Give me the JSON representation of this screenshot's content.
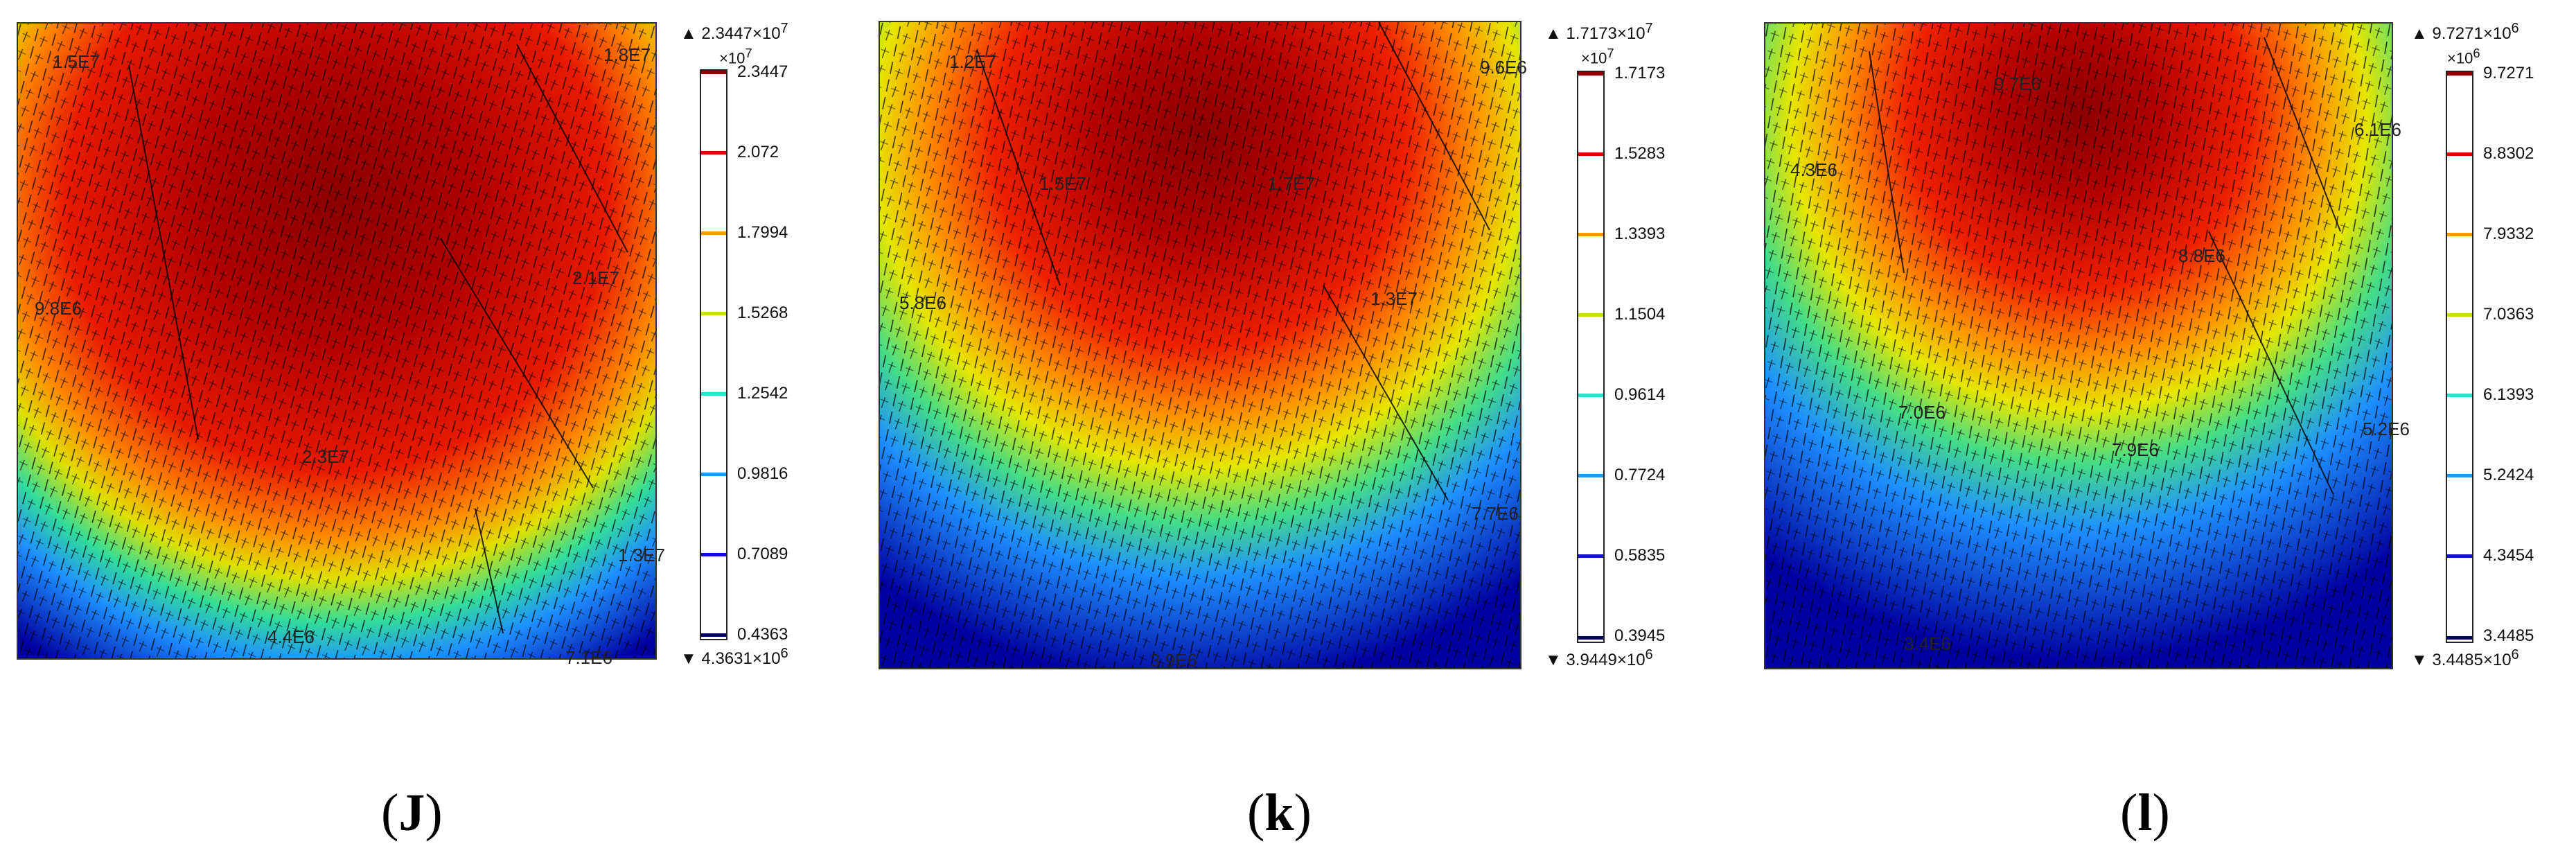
{
  "panels": [
    {
      "caption_open": "(",
      "caption_letter": "J",
      "caption_close": ")",
      "colorbar": {
        "max_label": "▲ 2.3447×10",
        "max_exp": "7",
        "multiplier": "×10",
        "multiplier_exp": "7",
        "ticks": [
          "2.3447",
          "2.072",
          "1.7994",
          "1.5268",
          "1.2542",
          "0.9816",
          "0.7089",
          "0.4363"
        ],
        "tick_colors": [
          "#8b0000",
          "#e00000",
          "#ff9900",
          "#c8e000",
          "#33ddcc",
          "#2299ee",
          "#1010cc",
          "#000066"
        ],
        "min_label": "▼ 4.3631×10",
        "min_exp": "6"
      },
      "field_labels": [
        "1.5E7",
        "1.8E7",
        "9.8E6",
        "2.1E7",
        "2.3E7",
        "1.3E7",
        "4.4E6",
        "7.1E6"
      ]
    },
    {
      "caption_open": "(",
      "caption_letter": "k",
      "caption_close": ")",
      "colorbar": {
        "max_label": "▲ 1.7173×10",
        "max_exp": "7",
        "multiplier": "×10",
        "multiplier_exp": "7",
        "ticks": [
          "1.7173",
          "1.5283",
          "1.3393",
          "1.1504",
          "0.9614",
          "0.7724",
          "0.5835",
          "0.3945"
        ],
        "tick_colors": [
          "#8b0000",
          "#e00000",
          "#ff9900",
          "#c8e000",
          "#33ddcc",
          "#2299ee",
          "#1010cc",
          "#000066"
        ],
        "min_label": "▼ 3.9449×10",
        "min_exp": "6"
      },
      "field_labels": [
        "1.2E7",
        "9.6E6",
        "1.5E7",
        "1.7E7",
        "5.8E6",
        "1.3E7",
        "7.7E6",
        "3.9E6"
      ]
    },
    {
      "caption_open": "(",
      "caption_letter": "l",
      "caption_close": ")",
      "colorbar": {
        "max_label": "▲ 9.7271×10",
        "max_exp": "6",
        "multiplier": "×10",
        "multiplier_exp": "6",
        "ticks": [
          "9.7271",
          "8.8302",
          "7.9332",
          "7.0363",
          "6.1393",
          "5.2424",
          "4.3454",
          "3.4485"
        ],
        "tick_colors": [
          "#8b0000",
          "#e00000",
          "#ff9900",
          "#c8e000",
          "#33ddcc",
          "#2299ee",
          "#1010cc",
          "#000066"
        ],
        "min_label": "▼ 3.4485×10",
        "min_exp": "6"
      },
      "field_labels": [
        "9.7E6",
        "6.1E6",
        "4.3E6",
        "8.8E6",
        "7.0E6",
        "7.9E6",
        "5.2E6",
        "3.4E6"
      ]
    }
  ]
}
